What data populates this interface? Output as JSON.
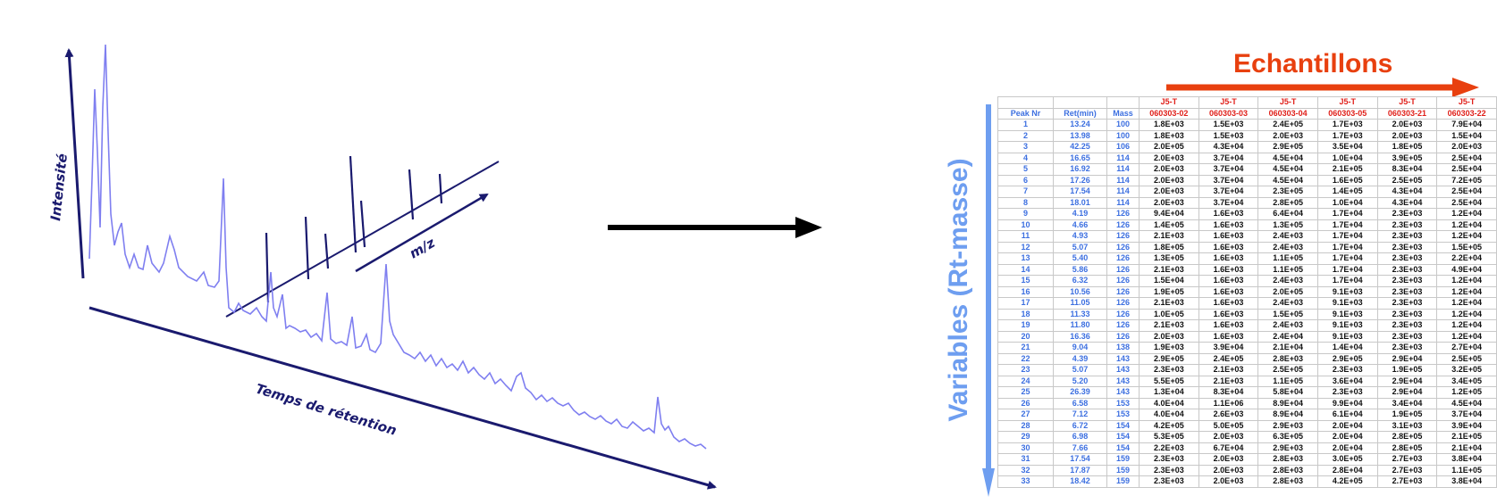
{
  "chromatogram": {
    "y_axis_label": "Intensité",
    "x_axis_label": "Temps de rétention",
    "mz_axis_label": "m/z",
    "trace_color": "#7f7ff0",
    "axis_color": "#1a1a6e"
  },
  "samples_title": "Echantillons",
  "samples_arrow_color": "#e8400f",
  "variables_title": "Variables (Rt-masse)",
  "variables_arrow_color": "#6e9ef0",
  "table": {
    "meta_headers": [
      "Peak Nr",
      "Ret(min)",
      "Mass"
    ],
    "sample_headers": [
      {
        "line1": "J5-T",
        "line2": "060303-02"
      },
      {
        "line1": "J5-T",
        "line2": "060303-03"
      },
      {
        "line1": "J5-T",
        "line2": "060303-04"
      },
      {
        "line1": "J5-T",
        "line2": "060303-05"
      },
      {
        "line1": "J5-T",
        "line2": "060303-21"
      },
      {
        "line1": "J5-T",
        "line2": "060303-22"
      }
    ],
    "rows": [
      [
        "1",
        "13.24",
        "100",
        "1.8E+03",
        "1.5E+03",
        "2.4E+05",
        "1.7E+03",
        "2.0E+03",
        "7.9E+04"
      ],
      [
        "2",
        "13.98",
        "100",
        "1.8E+03",
        "1.5E+03",
        "2.0E+03",
        "1.7E+03",
        "2.0E+03",
        "1.5E+04"
      ],
      [
        "3",
        "42.25",
        "106",
        "2.0E+05",
        "4.3E+04",
        "2.9E+05",
        "3.5E+04",
        "1.8E+05",
        "2.0E+03"
      ],
      [
        "4",
        "16.65",
        "114",
        "2.0E+03",
        "3.7E+04",
        "4.5E+04",
        "1.0E+04",
        "3.9E+05",
        "2.5E+04"
      ],
      [
        "5",
        "16.92",
        "114",
        "2.0E+03",
        "3.7E+04",
        "4.5E+04",
        "2.1E+05",
        "8.3E+04",
        "2.5E+04"
      ],
      [
        "6",
        "17.26",
        "114",
        "2.0E+03",
        "3.7E+04",
        "4.5E+04",
        "1.6E+05",
        "2.5E+05",
        "7.2E+05"
      ],
      [
        "7",
        "17.54",
        "114",
        "2.0E+03",
        "3.7E+04",
        "2.3E+05",
        "1.4E+05",
        "4.3E+04",
        "2.5E+04"
      ],
      [
        "8",
        "18.01",
        "114",
        "2.0E+03",
        "3.7E+04",
        "2.8E+05",
        "1.0E+04",
        "4.3E+04",
        "2.5E+04"
      ],
      [
        "9",
        "4.19",
        "126",
        "9.4E+04",
        "1.6E+03",
        "6.4E+04",
        "1.7E+04",
        "2.3E+03",
        "1.2E+04"
      ],
      [
        "10",
        "4.66",
        "126",
        "1.4E+05",
        "1.6E+03",
        "1.3E+05",
        "1.7E+04",
        "2.3E+03",
        "1.2E+04"
      ],
      [
        "11",
        "4.93",
        "126",
        "2.1E+03",
        "1.6E+03",
        "2.4E+03",
        "1.7E+04",
        "2.3E+03",
        "1.2E+04"
      ],
      [
        "12",
        "5.07",
        "126",
        "1.8E+05",
        "1.6E+03",
        "2.4E+03",
        "1.7E+04",
        "2.3E+03",
        "1.5E+05"
      ],
      [
        "13",
        "5.40",
        "126",
        "1.3E+05",
        "1.6E+03",
        "1.1E+05",
        "1.7E+04",
        "2.3E+03",
        "2.2E+04"
      ],
      [
        "14",
        "5.86",
        "126",
        "2.1E+03",
        "1.6E+03",
        "1.1E+05",
        "1.7E+04",
        "2.3E+03",
        "4.9E+04"
      ],
      [
        "15",
        "6.32",
        "126",
        "1.5E+04",
        "1.6E+03",
        "2.4E+03",
        "1.7E+04",
        "2.3E+03",
        "1.2E+04"
      ],
      [
        "16",
        "10.56",
        "126",
        "1.9E+05",
        "1.6E+03",
        "2.0E+05",
        "9.1E+03",
        "2.3E+03",
        "1.2E+04"
      ],
      [
        "17",
        "11.05",
        "126",
        "2.1E+03",
        "1.6E+03",
        "2.4E+03",
        "9.1E+03",
        "2.3E+03",
        "1.2E+04"
      ],
      [
        "18",
        "11.33",
        "126",
        "1.0E+05",
        "1.6E+03",
        "1.5E+05",
        "9.1E+03",
        "2.3E+03",
        "1.2E+04"
      ],
      [
        "19",
        "11.80",
        "126",
        "2.1E+03",
        "1.6E+03",
        "2.4E+03",
        "9.1E+03",
        "2.3E+03",
        "1.2E+04"
      ],
      [
        "20",
        "16.36",
        "126",
        "2.0E+03",
        "1.6E+03",
        "2.4E+04",
        "9.1E+03",
        "2.3E+03",
        "1.2E+04"
      ],
      [
        "21",
        "9.04",
        "138",
        "1.9E+03",
        "3.9E+04",
        "2.1E+04",
        "1.4E+04",
        "2.3E+03",
        "2.7E+04"
      ],
      [
        "22",
        "4.39",
        "143",
        "2.9E+05",
        "2.4E+05",
        "2.8E+03",
        "2.9E+05",
        "2.9E+04",
        "2.5E+05"
      ],
      [
        "23",
        "5.07",
        "143",
        "2.3E+03",
        "2.1E+03",
        "2.5E+05",
        "2.3E+03",
        "1.9E+05",
        "3.2E+05"
      ],
      [
        "24",
        "5.20",
        "143",
        "5.5E+05",
        "2.1E+03",
        "1.1E+05",
        "3.6E+04",
        "2.9E+04",
        "3.4E+05"
      ],
      [
        "25",
        "26.39",
        "143",
        "1.3E+04",
        "8.3E+04",
        "5.8E+04",
        "2.3E+03",
        "2.9E+04",
        "1.2E+05"
      ],
      [
        "26",
        "6.58",
        "153",
        "4.0E+04",
        "1.1E+06",
        "8.9E+04",
        "9.9E+04",
        "3.4E+04",
        "4.5E+04"
      ],
      [
        "27",
        "7.12",
        "153",
        "4.0E+04",
        "2.6E+03",
        "8.9E+04",
        "6.1E+04",
        "1.9E+05",
        "3.7E+04"
      ],
      [
        "28",
        "6.72",
        "154",
        "4.2E+05",
        "5.0E+05",
        "2.9E+03",
        "2.0E+04",
        "3.1E+03",
        "3.9E+04"
      ],
      [
        "29",
        "6.98",
        "154",
        "5.3E+05",
        "2.0E+03",
        "6.3E+05",
        "2.0E+04",
        "2.8E+05",
        "2.1E+05"
      ],
      [
        "30",
        "7.66",
        "154",
        "2.2E+03",
        "6.7E+04",
        "2.9E+03",
        "2.0E+04",
        "2.8E+05",
        "2.1E+04"
      ],
      [
        "31",
        "17.54",
        "159",
        "2.3E+03",
        "2.0E+03",
        "2.8E+03",
        "3.0E+05",
        "2.7E+03",
        "3.8E+04"
      ],
      [
        "32",
        "17.87",
        "159",
        "2.3E+03",
        "2.0E+03",
        "2.8E+03",
        "2.8E+04",
        "2.7E+03",
        "1.1E+05"
      ],
      [
        "33",
        "18.42",
        "159",
        "2.3E+03",
        "2.0E+03",
        "2.8E+03",
        "4.2E+05",
        "2.7E+03",
        "3.8E+04"
      ]
    ]
  }
}
